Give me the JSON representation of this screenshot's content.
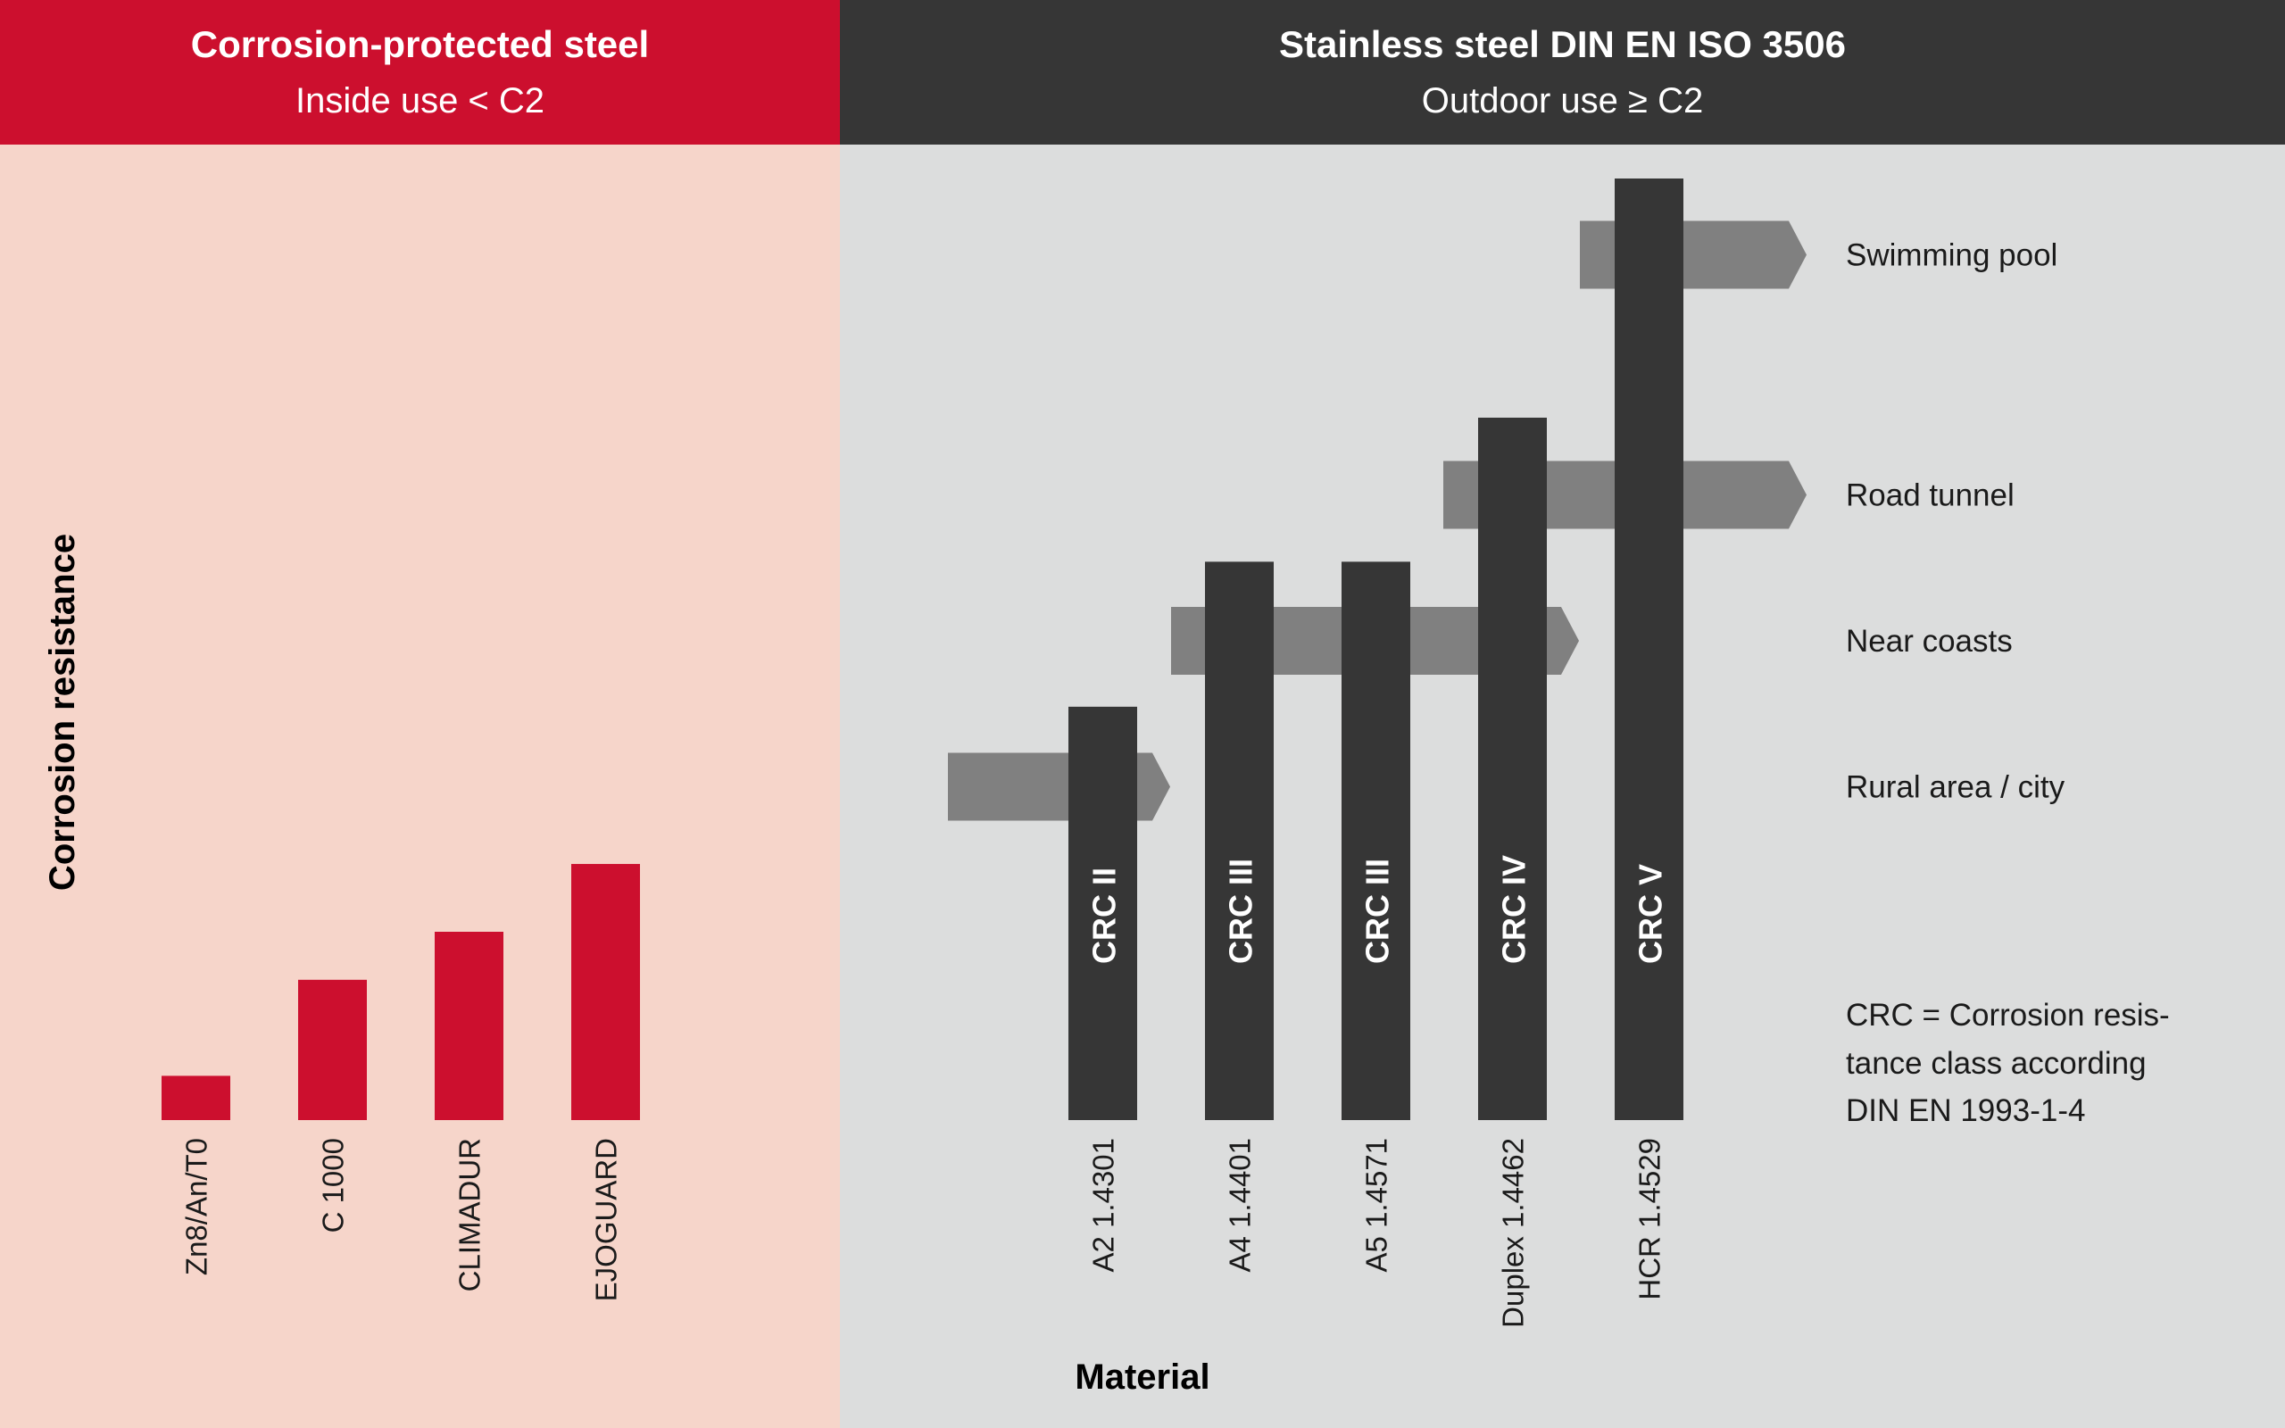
{
  "headers": {
    "left": {
      "title": "Corrosion-protected steel",
      "subtitle": "Inside use < C2"
    },
    "right": {
      "title": "Stainless steel DIN EN ISO 3506",
      "subtitle": "Outdoor use ≥ C2"
    }
  },
  "note": [
    "CRC = Corrosion resis-",
    "tance class according",
    "DIN EN 1993-1-4"
  ],
  "colors": {
    "red": "#cc0f2e",
    "dark": "#363636",
    "arrow": "#808080",
    "left_bg": "#f6d5ca",
    "right_bg": "#dcdddd"
  },
  "chart_data": {
    "type": "bar",
    "ylabel": "Corrosion resistance",
    "xlabel": "Material",
    "axis_scale": "relative, no numeric ticks",
    "ylim": [
      0,
      100
    ],
    "groups": [
      {
        "name": "Corrosion-protected steel",
        "color": "#cc0f2e",
        "categories": [
          "Zn8/An/T0",
          "C 1000",
          "CLIMADUR",
          "EJOGUARD"
        ],
        "values": [
          4.7,
          14.9,
          20.0,
          27.2
        ],
        "bar_labels": [
          "",
          "",
          "",
          ""
        ]
      },
      {
        "name": "Stainless steel DIN EN ISO 3506",
        "color": "#363636",
        "categories": [
          "A2 1.4301",
          "A4 1.4401",
          "A5 1.4571",
          "Duplex 1.4462",
          "HCR 1.4529"
        ],
        "values": [
          43.9,
          59.3,
          59.3,
          74.6,
          100
        ],
        "bar_labels": [
          "CRC II",
          "CRC III",
          "CRC III",
          "CRC IV",
          "CRC V"
        ]
      }
    ],
    "environments": [
      {
        "label": "Rural area / city",
        "level": 35.4,
        "from_category": "A2 1.4301",
        "to_category": "A2 1.4301"
      },
      {
        "label": "Near coasts",
        "level": 50.9,
        "from_category": "A4 1.4401",
        "to_category": "Duplex 1.4462"
      },
      {
        "label": "Road tunnel",
        "level": 66.4,
        "from_category": "Duplex 1.4462",
        "to_category": "HCR 1.4529"
      },
      {
        "label": "Swimming pool",
        "level": 91.9,
        "from_category": "HCR 1.4529",
        "to_category": "HCR 1.4529"
      }
    ]
  }
}
